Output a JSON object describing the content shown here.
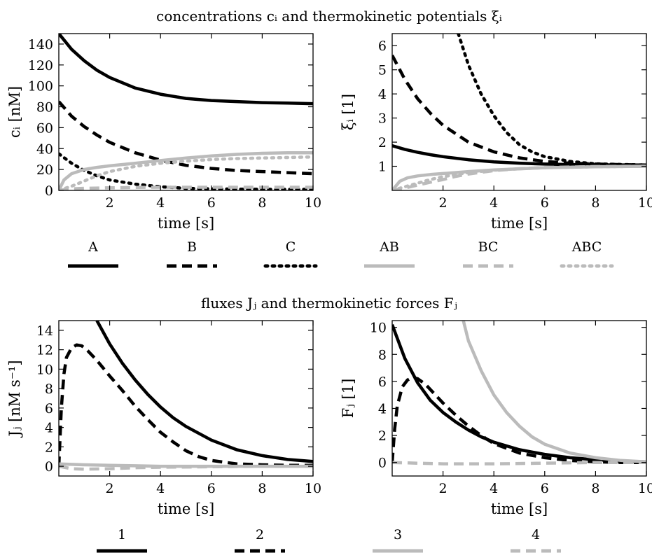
{
  "sections": [
    {
      "title": "concentrations cᵢ and thermokinetic potentials ξᵢ"
    },
    {
      "title": "fluxes Jⱼ and thermokinetic forces Fⱼ"
    }
  ],
  "legend_top": [
    {
      "label": "A",
      "color": "#000000",
      "dash": "solid"
    },
    {
      "label": "B",
      "color": "#000000",
      "dash": "dashed"
    },
    {
      "label": "C",
      "color": "#000000",
      "dash": "dotted"
    },
    {
      "label": "AB",
      "color": "#bbbbbb",
      "dash": "solid"
    },
    {
      "label": "BC",
      "color": "#bbbbbb",
      "dash": "dashed"
    },
    {
      "label": "ABC",
      "color": "#bbbbbb",
      "dash": "dotted"
    }
  ],
  "legend_bottom": [
    {
      "label": "1",
      "color": "#000000",
      "dash": "solid"
    },
    {
      "label": "2",
      "color": "#000000",
      "dash": "dashed"
    },
    {
      "label": "3",
      "color": "#bbbbbb",
      "dash": "solid"
    },
    {
      "label": "4",
      "color": "#bbbbbb",
      "dash": "dashed"
    }
  ],
  "chart_data": [
    {
      "type": "line",
      "xlabel": "time [s]",
      "ylabel": "cᵢ [nM]",
      "xlim": [
        0,
        10
      ],
      "ylim": [
        0,
        150
      ],
      "xticks": [
        2,
        4,
        6,
        8,
        10
      ],
      "yticks": [
        0,
        20,
        40,
        60,
        80,
        100,
        120,
        140
      ],
      "series": [
        {
          "name": "A",
          "color": "#000000",
          "dash": "solid",
          "x": [
            0,
            0.5,
            1,
            1.5,
            2,
            3,
            4,
            5,
            6,
            7,
            8,
            9,
            10
          ],
          "y": [
            150,
            135,
            124,
            115,
            108,
            98,
            92,
            88,
            86,
            85,
            84,
            83.5,
            83
          ]
        },
        {
          "name": "B",
          "color": "#000000",
          "dash": "dashed",
          "x": [
            0,
            0.5,
            1,
            1.5,
            2,
            3,
            4,
            5,
            6,
            7,
            8,
            9,
            10
          ],
          "y": [
            85,
            71,
            61,
            53,
            46,
            36,
            29,
            24,
            21,
            19,
            18,
            17,
            16
          ]
        },
        {
          "name": "C",
          "color": "#000000",
          "dash": "dotted",
          "x": [
            0,
            0.5,
            1,
            1.5,
            2,
            3,
            4,
            5,
            6,
            7,
            8,
            9,
            10
          ],
          "y": [
            35,
            26,
            19,
            14,
            10,
            6,
            3.5,
            2,
            1.5,
            1.2,
            1,
            1,
            1
          ]
        },
        {
          "name": "AB",
          "color": "#bbbbbb",
          "dash": "solid",
          "x": [
            0,
            0.2,
            0.5,
            1,
            1.5,
            2,
            3,
            4,
            5,
            6,
            7,
            8,
            9,
            10
          ],
          "y": [
            0,
            10,
            16,
            20,
            22,
            23.5,
            26,
            28.5,
            31,
            33,
            34.5,
            35.5,
            36,
            36
          ]
        },
        {
          "name": "BC",
          "color": "#bbbbbb",
          "dash": "dashed",
          "x": [
            0,
            0.5,
            1,
            2,
            3,
            4,
            5,
            6,
            7,
            8,
            9,
            10
          ],
          "y": [
            0,
            1.5,
            2,
            2.5,
            2.8,
            3,
            3,
            3,
            3,
            3,
            3,
            3
          ]
        },
        {
          "name": "ABC",
          "color": "#bbbbbb",
          "dash": "dotted",
          "x": [
            0,
            0.5,
            1,
            1.5,
            2,
            3,
            4,
            5,
            6,
            7,
            8,
            9,
            10
          ],
          "y": [
            0,
            4,
            9,
            14,
            18,
            23,
            26,
            28,
            29.5,
            30.5,
            31,
            31.5,
            32
          ]
        }
      ]
    },
    {
      "type": "line",
      "xlabel": "time [s]",
      "ylabel": "ξᵢ [1]",
      "xlim": [
        0,
        10
      ],
      "ylim": [
        0,
        6.5
      ],
      "xticks": [
        2,
        4,
        6,
        8,
        10
      ],
      "yticks": [
        1,
        2,
        3,
        4,
        5,
        6
      ],
      "series": [
        {
          "name": "A",
          "color": "#000000",
          "dash": "solid",
          "x": [
            0,
            0.5,
            1,
            1.5,
            2,
            3,
            4,
            5,
            6,
            7,
            8,
            10
          ],
          "y": [
            1.85,
            1.7,
            1.58,
            1.48,
            1.4,
            1.27,
            1.18,
            1.13,
            1.09,
            1.07,
            1.06,
            1.05
          ]
        },
        {
          "name": "B",
          "color": "#000000",
          "dash": "dashed",
          "x": [
            0,
            0.5,
            1,
            1.5,
            2,
            3,
            4,
            5,
            6,
            7,
            8,
            10
          ],
          "y": [
            5.6,
            4.6,
            3.8,
            3.2,
            2.7,
            2.0,
            1.6,
            1.35,
            1.2,
            1.13,
            1.09,
            1.05
          ]
        },
        {
          "name": "C",
          "color": "#000000",
          "dash": "dotted",
          "x": [
            2.6,
            3,
            3.5,
            4,
            4.5,
            5,
            5.5,
            6,
            7,
            8,
            10
          ],
          "y": [
            6.5,
            5.2,
            4.0,
            3.1,
            2.4,
            1.9,
            1.6,
            1.4,
            1.2,
            1.1,
            1.05
          ]
        },
        {
          "name": "AB",
          "color": "#bbbbbb",
          "dash": "solid",
          "x": [
            0,
            0.3,
            0.6,
            1,
            1.5,
            2,
            3,
            4,
            6,
            8,
            10
          ],
          "y": [
            0,
            0.38,
            0.52,
            0.6,
            0.66,
            0.7,
            0.78,
            0.85,
            0.94,
            0.98,
            1.0
          ]
        },
        {
          "name": "BC",
          "color": "#bbbbbb",
          "dash": "dashed",
          "x": [
            0,
            0.5,
            1,
            1.5,
            2,
            2.5,
            3,
            4,
            5,
            6,
            8,
            10
          ],
          "y": [
            0,
            0.1,
            0.22,
            0.34,
            0.45,
            0.58,
            0.68,
            0.82,
            0.9,
            0.95,
            0.99,
            1.0
          ]
        },
        {
          "name": "ABC",
          "color": "#bbbbbb",
          "dash": "dotted",
          "x": [
            0,
            0.5,
            1,
            1.5,
            2,
            3,
            4,
            5,
            6,
            8,
            10
          ],
          "y": [
            0,
            0.15,
            0.3,
            0.45,
            0.57,
            0.74,
            0.84,
            0.9,
            0.94,
            0.98,
            1.0
          ]
        }
      ]
    },
    {
      "type": "line",
      "xlabel": "time [s]",
      "ylabel": "Jⱼ [nM s⁻¹]",
      "xlim": [
        0,
        10
      ],
      "ylim": [
        -1,
        15
      ],
      "xticks": [
        2,
        4,
        6,
        8,
        10
      ],
      "yticks": [
        0,
        2,
        4,
        6,
        8,
        10,
        12,
        14
      ],
      "series": [
        {
          "name": "1",
          "color": "#000000",
          "dash": "solid",
          "x": [
            1.5,
            2,
            2.5,
            3,
            3.5,
            4,
            4.5,
            5,
            6,
            7,
            8,
            9,
            10
          ],
          "y": [
            15,
            12.6,
            10.6,
            8.9,
            7.4,
            6.1,
            5.0,
            4.1,
            2.7,
            1.7,
            1.1,
            0.7,
            0.5
          ]
        },
        {
          "name": "2",
          "color": "#000000",
          "dash": "dashed",
          "x": [
            0,
            0.1,
            0.2,
            0.3,
            0.5,
            0.7,
            0.9,
            1.1,
            1.5,
            2,
            2.5,
            3,
            3.5,
            4,
            4.5,
            5,
            5.5,
            6,
            7,
            8,
            9,
            10
          ],
          "y": [
            0,
            6,
            9.5,
            11.2,
            12.2,
            12.5,
            12.4,
            12.0,
            10.9,
            9.3,
            7.8,
            6.2,
            4.8,
            3.5,
            2.5,
            1.6,
            1.0,
            0.6,
            0.25,
            0.15,
            0.1,
            0.1
          ]
        },
        {
          "name": "3",
          "color": "#bbbbbb",
          "dash": "solid",
          "x": [
            0,
            1,
            2,
            3,
            4,
            6,
            8,
            10
          ],
          "y": [
            0.25,
            0.15,
            0.1,
            0.05,
            0.0,
            0.0,
            0.0,
            0.0
          ]
        },
        {
          "name": "4",
          "color": "#bbbbbb",
          "dash": "dashed",
          "x": [
            0,
            0.5,
            1,
            2,
            3,
            4,
            6,
            8,
            10
          ],
          "y": [
            0,
            -0.25,
            -0.3,
            -0.25,
            -0.15,
            -0.1,
            -0.05,
            0.0,
            0.0
          ]
        }
      ]
    },
    {
      "type": "line",
      "xlabel": "time [s]",
      "ylabel": "Fⱼ [1]",
      "xlim": [
        0,
        10
      ],
      "ylim": [
        -1,
        10.5
      ],
      "xticks": [
        2,
        4,
        6,
        8,
        10
      ],
      "yticks": [
        0,
        2,
        4,
        6,
        8,
        10
      ],
      "series": [
        {
          "name": "1",
          "color": "#000000",
          "dash": "solid",
          "x": [
            0,
            0.5,
            1,
            1.5,
            2,
            2.5,
            3,
            3.5,
            4,
            5,
            6,
            7,
            8,
            9,
            10
          ],
          "y": [
            10.2,
            7.7,
            5.9,
            4.6,
            3.7,
            3.0,
            2.4,
            1.9,
            1.5,
            0.95,
            0.6,
            0.35,
            0.2,
            0.1,
            0.05
          ]
        },
        {
          "name": "2",
          "color": "#000000",
          "dash": "dashed",
          "x": [
            0,
            0.1,
            0.2,
            0.4,
            0.6,
            0.8,
            1.0,
            1.3,
            1.6,
            2,
            2.5,
            3,
            3.5,
            4,
            5,
            6,
            7,
            8,
            9,
            10
          ],
          "y": [
            0,
            2.5,
            4.2,
            5.6,
            6.1,
            6.3,
            6.2,
            5.8,
            5.2,
            4.4,
            3.5,
            2.7,
            2.0,
            1.4,
            0.7,
            0.35,
            0.15,
            0.05,
            0.0,
            0.0
          ]
        },
        {
          "name": "3",
          "color": "#bbbbbb",
          "dash": "solid",
          "x": [
            2.8,
            3,
            3.5,
            4,
            4.5,
            5,
            5.5,
            6,
            7,
            8,
            9,
            10
          ],
          "y": [
            10.5,
            9.0,
            6.8,
            5.0,
            3.7,
            2.7,
            1.9,
            1.35,
            0.7,
            0.35,
            0.15,
            0.05
          ]
        },
        {
          "name": "4",
          "color": "#bbbbbb",
          "dash": "dashed",
          "x": [
            0,
            1,
            2,
            3,
            4,
            6,
            8,
            10
          ],
          "y": [
            0,
            -0.05,
            -0.1,
            -0.1,
            -0.1,
            -0.05,
            0.0,
            0.0
          ]
        }
      ]
    }
  ]
}
